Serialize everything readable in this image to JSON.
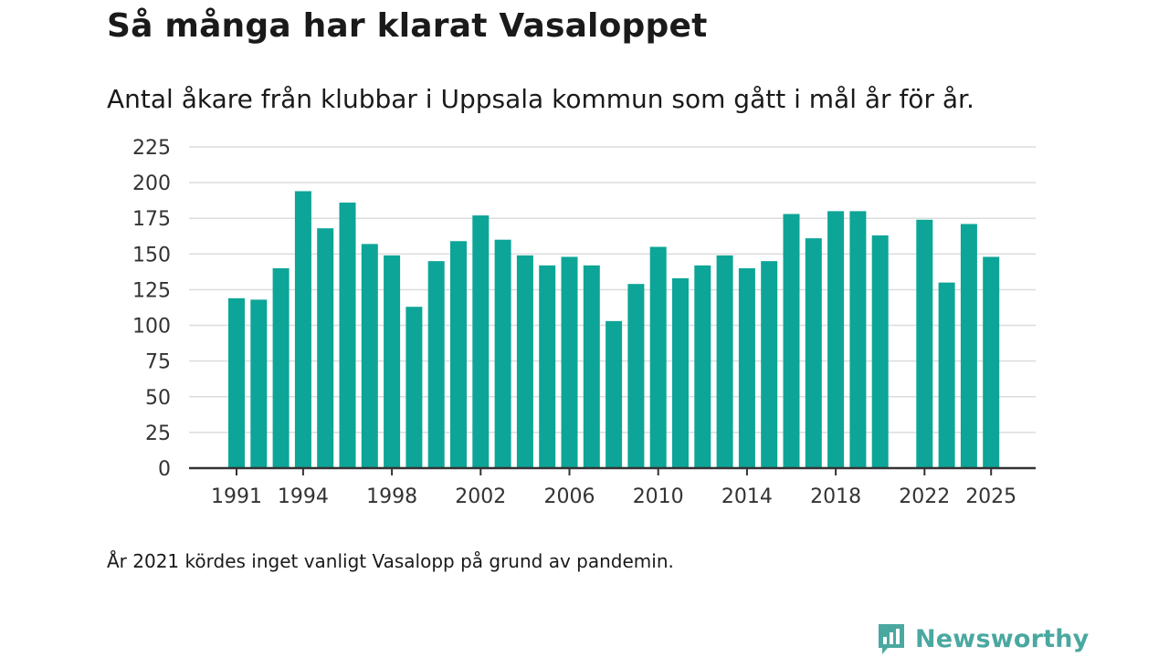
{
  "title": "Så många har klarat Vasaloppet",
  "subtitle": "Antal åkare från klubbar i Uppsala kommun som gått i mål år för år.",
  "note": "År 2021 kördes inget vanligt Vasalopp på grund av pandemin.",
  "brand": {
    "name": "Newsworthy",
    "color": "#4aa8a0"
  },
  "colors": {
    "bar": "#0da597",
    "grid": "#dcdcdc",
    "axis": "#333333"
  },
  "chart_data": {
    "type": "bar",
    "title": "Så många har klarat Vasaloppet",
    "xlabel": "",
    "ylabel": "",
    "ylim": [
      0,
      225
    ],
    "yticks": [
      0,
      25,
      50,
      75,
      100,
      125,
      150,
      175,
      200,
      225
    ],
    "xticks": [
      1991,
      1994,
      1998,
      2002,
      2006,
      2010,
      2014,
      2018,
      2022,
      2025
    ],
    "categories": [
      1991,
      1992,
      1993,
      1994,
      1995,
      1996,
      1997,
      1998,
      1999,
      2000,
      2001,
      2002,
      2003,
      2004,
      2005,
      2006,
      2007,
      2008,
      2009,
      2010,
      2011,
      2012,
      2013,
      2014,
      2015,
      2016,
      2017,
      2018,
      2019,
      2020,
      2021,
      2022,
      2023,
      2024,
      2025
    ],
    "values": [
      119,
      118,
      140,
      194,
      168,
      186,
      157,
      149,
      113,
      145,
      159,
      177,
      160,
      149,
      142,
      148,
      142,
      103,
      129,
      155,
      133,
      142,
      149,
      140,
      145,
      178,
      161,
      180,
      180,
      163,
      null,
      174,
      130,
      171,
      148
    ]
  }
}
